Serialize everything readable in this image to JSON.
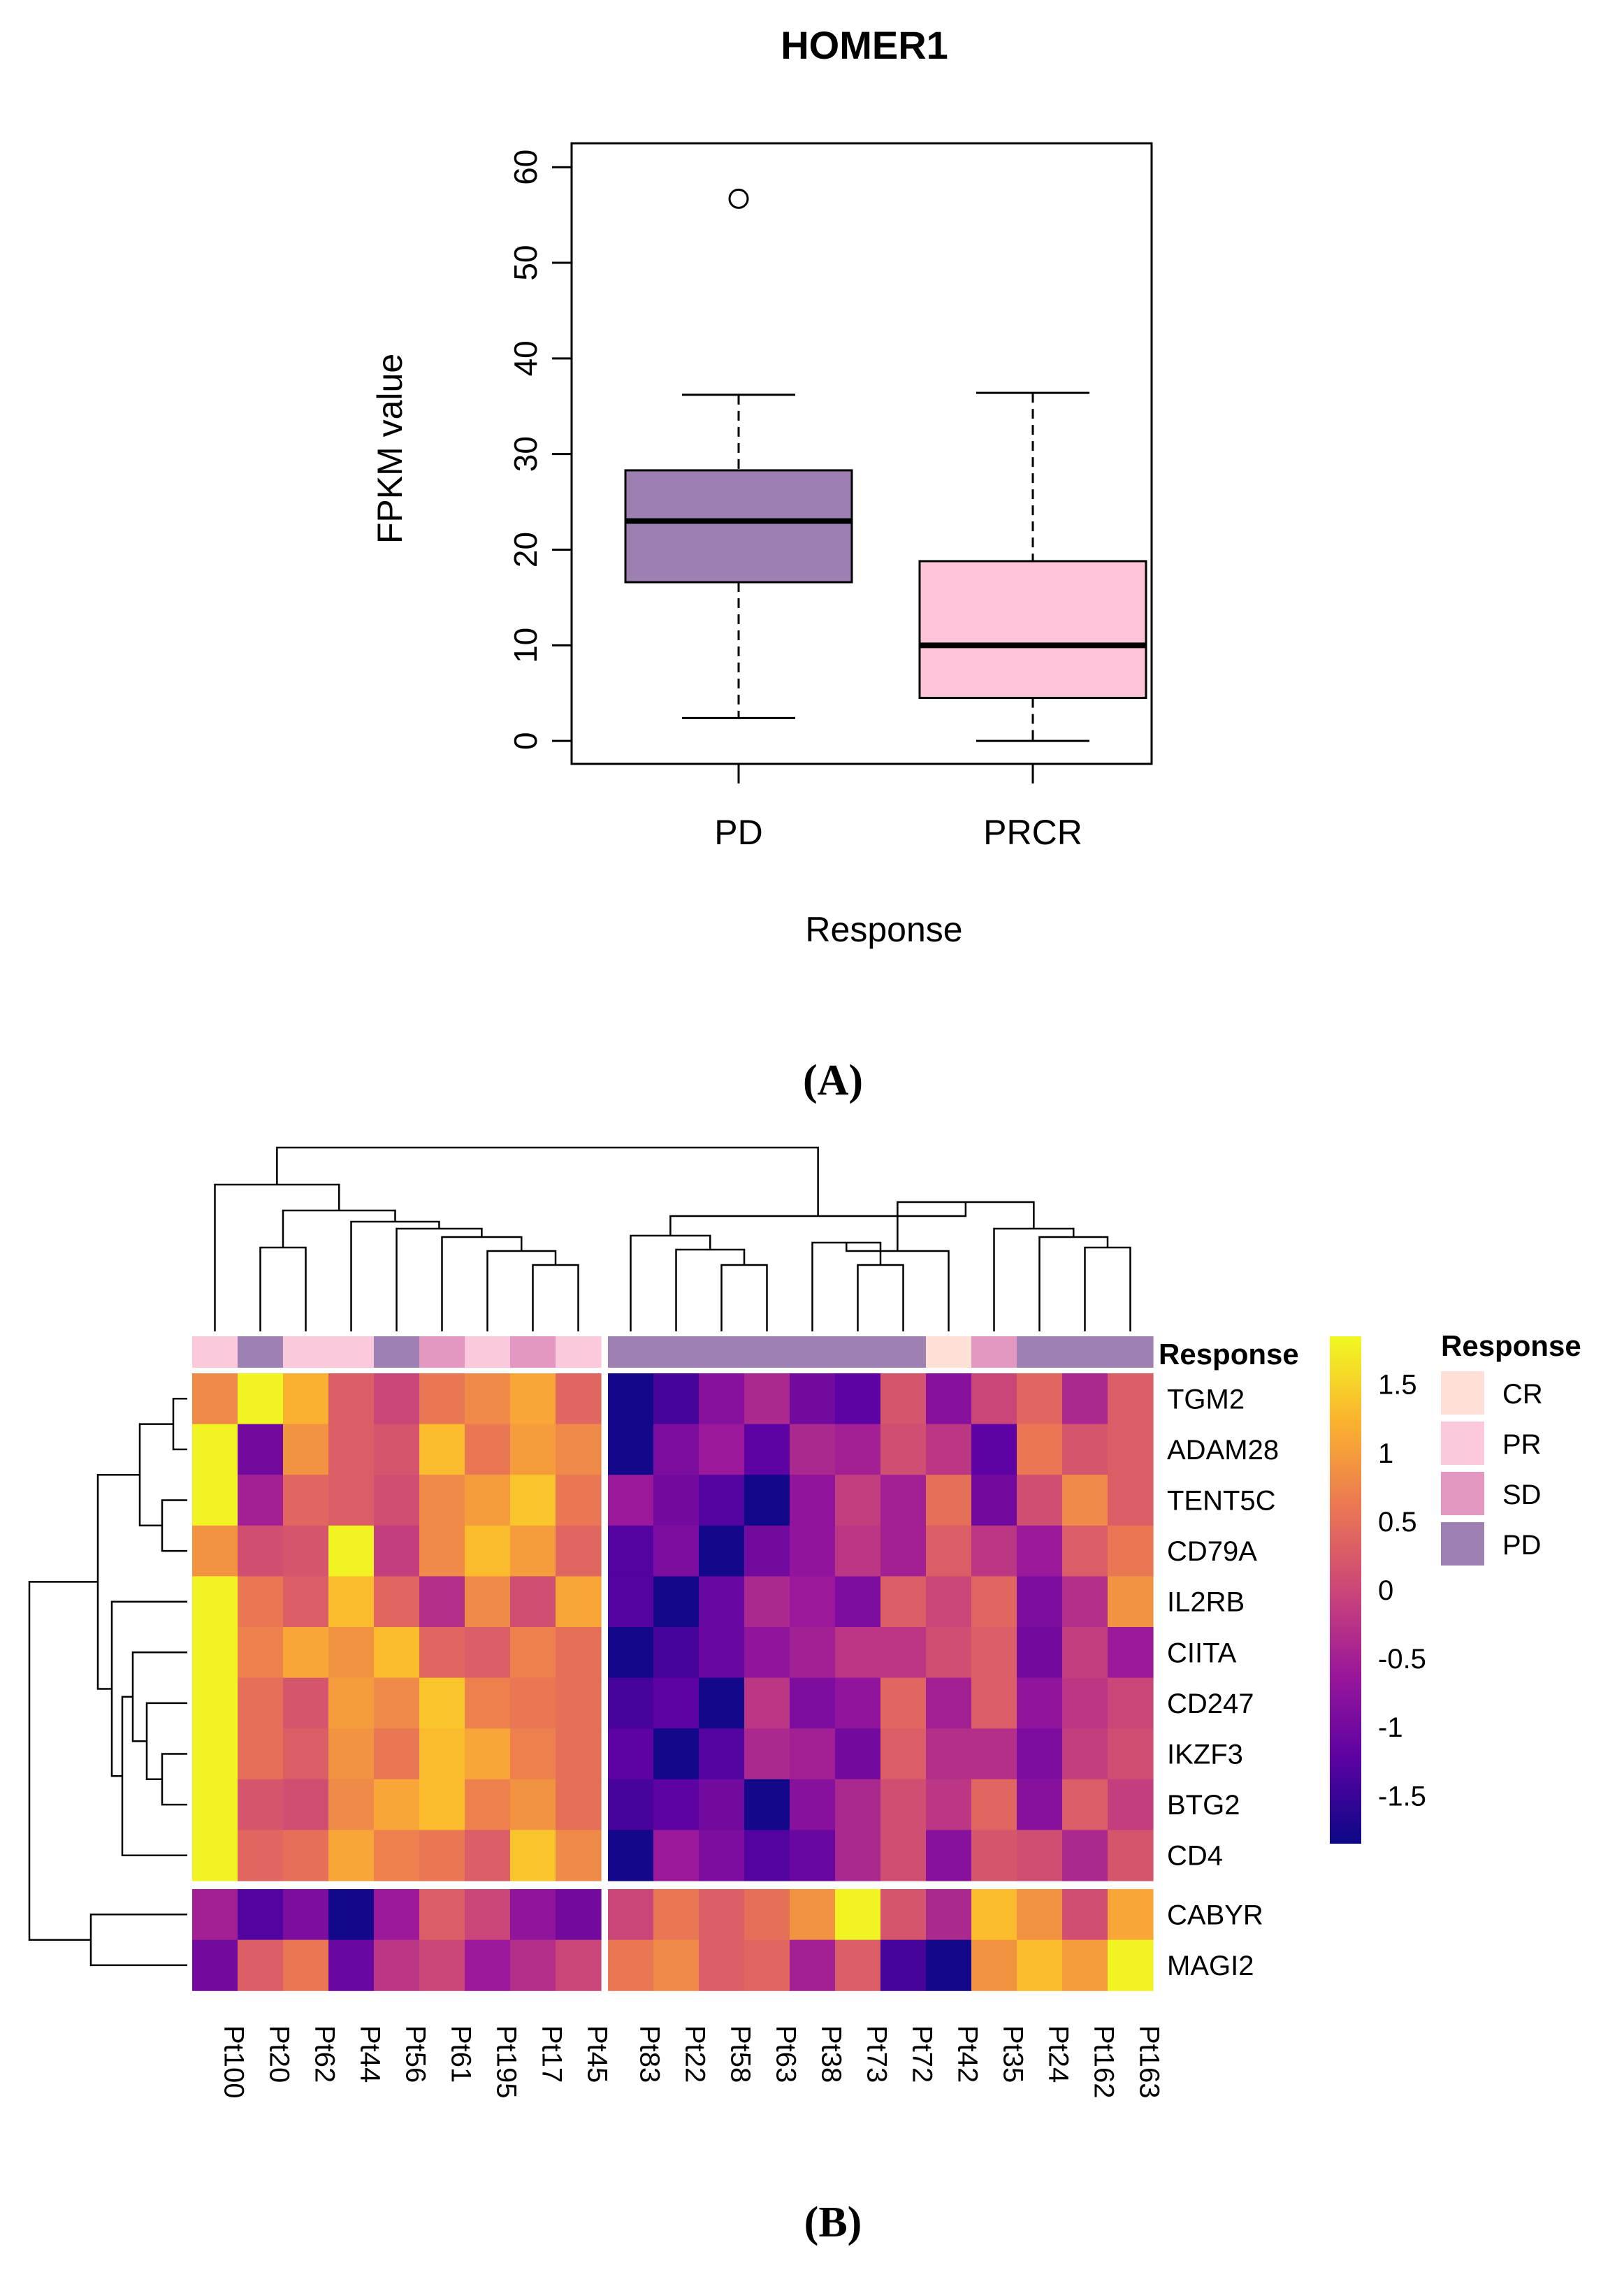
{
  "chart_data": [
    {
      "type": "box",
      "title": "HOMER1",
      "xlabel": "Response",
      "ylabel": "FPKM value",
      "categories": [
        "PD",
        "PRCR"
      ],
      "yticks": [
        0,
        10,
        20,
        30,
        40,
        50,
        60
      ],
      "ylim": [
        -2.4,
        62.5
      ],
      "boxes": [
        {
          "category": "PD",
          "min": 2.4,
          "q1": 16.6,
          "median": 23.0,
          "q3": 28.3,
          "max": 36.2,
          "outliers": [
            56.7
          ],
          "color": "#9e7fb2"
        },
        {
          "category": "PRCR",
          "min": 0.0,
          "q1": 4.5,
          "median": 10.0,
          "q3": 18.8,
          "max": 36.4,
          "outliers": [],
          "color": "#fec4d9"
        }
      ],
      "panel_label": "(A)"
    },
    {
      "type": "heatmap",
      "panel_label": "(B)",
      "columns": [
        "Pt100",
        "Pt20",
        "Pt62",
        "Pt44",
        "Pt56",
        "Pt61",
        "Pt195",
        "Pt17",
        "Pt45",
        "Pt83",
        "Pt22",
        "Pt58",
        "Pt63",
        "Pt38",
        "Pt73",
        "Pt72",
        "Pt42",
        "Pt35",
        "Pt24",
        "Pt162",
        "Pt163"
      ],
      "column_split_after": 9,
      "rows": [
        "TGM2",
        "ADAM28",
        "TENT5C",
        "CD79A",
        "IL2RB",
        "CIITA",
        "CD247",
        "IKZF3",
        "BTG2",
        "CD4",
        "CABYR",
        "MAGI2"
      ],
      "row_split_after": 10,
      "values": [
        [
          0.8,
          1.8,
          1.2,
          0.3,
          0.0,
          0.6,
          0.8,
          1.1,
          0.4,
          -1.8,
          -1.4,
          -0.8,
          -0.4,
          -1.0,
          -1.2,
          0.2,
          -0.8,
          0.0,
          0.4,
          -0.4,
          0.3
        ],
        [
          1.8,
          -1.0,
          0.9,
          0.3,
          0.2,
          1.3,
          0.6,
          1.0,
          0.8,
          -1.8,
          -0.9,
          -0.6,
          -1.2,
          -0.4,
          -0.5,
          0.1,
          -0.2,
          -1.2,
          0.6,
          0.2,
          0.3
        ],
        [
          1.8,
          -0.5,
          0.4,
          0.3,
          0.1,
          0.8,
          1.0,
          1.4,
          0.6,
          -0.6,
          -1.0,
          -1.3,
          -1.8,
          -0.7,
          -0.1,
          -0.5,
          0.5,
          -1.0,
          0.1,
          0.8,
          0.3
        ],
        [
          0.9,
          0.1,
          0.2,
          1.8,
          -0.1,
          0.8,
          1.3,
          1.0,
          0.4,
          -1.3,
          -0.9,
          -1.8,
          -1.0,
          -0.7,
          -0.2,
          -0.5,
          0.3,
          -0.2,
          -0.6,
          0.3,
          0.6
        ],
        [
          1.8,
          0.6,
          0.3,
          1.3,
          0.4,
          -0.3,
          0.8,
          0.1,
          1.1,
          -1.3,
          -1.8,
          -1.1,
          -0.4,
          -0.6,
          -0.9,
          0.3,
          0.0,
          0.4,
          -0.9,
          -0.3,
          0.9
        ],
        [
          1.8,
          0.7,
          1.1,
          0.9,
          1.3,
          0.4,
          0.3,
          0.7,
          0.5,
          -1.8,
          -1.4,
          -1.1,
          -0.7,
          -0.5,
          -0.2,
          -0.2,
          0.1,
          0.3,
          -1.0,
          -0.1,
          -0.6
        ],
        [
          1.8,
          0.5,
          0.2,
          1.0,
          0.8,
          1.4,
          0.7,
          0.6,
          0.5,
          -1.4,
          -1.2,
          -1.8,
          -0.2,
          -0.9,
          -0.7,
          0.4,
          -0.5,
          0.3,
          -0.7,
          -0.2,
          0.0
        ],
        [
          1.8,
          0.5,
          0.3,
          0.9,
          0.6,
          1.3,
          1.1,
          0.7,
          0.5,
          -1.2,
          -1.8,
          -1.3,
          -0.4,
          -0.5,
          -1.0,
          0.3,
          -0.3,
          -0.3,
          -0.9,
          -0.1,
          0.1
        ],
        [
          1.8,
          0.2,
          0.1,
          0.8,
          1.1,
          1.3,
          0.7,
          0.9,
          0.5,
          -1.4,
          -1.2,
          -1.0,
          -1.8,
          -0.8,
          -0.4,
          0.1,
          -0.2,
          0.4,
          -0.8,
          0.3,
          -0.1
        ],
        [
          1.8,
          0.4,
          0.5,
          1.1,
          0.7,
          0.6,
          0.3,
          1.4,
          0.8,
          -1.8,
          -0.6,
          -0.9,
          -1.3,
          -1.1,
          -0.4,
          0.1,
          -0.8,
          0.2,
          0.1,
          -0.4,
          0.2
        ],
        [
          -0.5,
          -1.3,
          -0.9,
          -1.8,
          -0.6,
          0.3,
          0.0,
          -0.7,
          -1.0,
          0.0,
          0.6,
          0.3,
          0.5,
          0.9,
          1.8,
          0.2,
          -0.4,
          1.3,
          0.9,
          0.1,
          1.1
        ],
        [
          -1.0,
          0.3,
          0.6,
          -1.1,
          -0.2,
          0.0,
          -0.6,
          -0.3,
          0.0,
          0.6,
          0.8,
          0.3,
          0.4,
          -0.5,
          0.3,
          -1.4,
          -1.8,
          0.9,
          1.3,
          1.0,
          1.8
        ]
      ],
      "column_annotation": {
        "title": "Response",
        "values": [
          "PR",
          "PD",
          "PR",
          "PR",
          "PD",
          "SD",
          "PR",
          "SD",
          "PR",
          "PD",
          "PD",
          "PD",
          "PD",
          "PD",
          "PD",
          "PD",
          "CR",
          "SD",
          "PD",
          "PD",
          "PD"
        ]
      },
      "annotation_legend": {
        "title": "Response",
        "entries": [
          {
            "label": "CR",
            "color": "#fee0d6"
          },
          {
            "label": "PR",
            "color": "#fcc8dc"
          },
          {
            "label": "SD",
            "color": "#e497c0"
          },
          {
            "label": "PD",
            "color": "#9f80b3"
          }
        ]
      },
      "color_scale": {
        "min": -1.85,
        "max": 1.85,
        "tick_values": [
          1.5,
          1,
          0.5,
          0,
          -0.5,
          -1,
          -1.5
        ],
        "tick_labels": [
          "1.5",
          "1",
          "0.5",
          "0",
          "-0.5",
          "-1",
          "-1.5"
        ],
        "stops": [
          "#0c0887",
          "#5b02a3",
          "#9a179b",
          "#cb4678",
          "#eb7852",
          "#fbb32f",
          "#f0f921"
        ]
      }
    }
  ]
}
